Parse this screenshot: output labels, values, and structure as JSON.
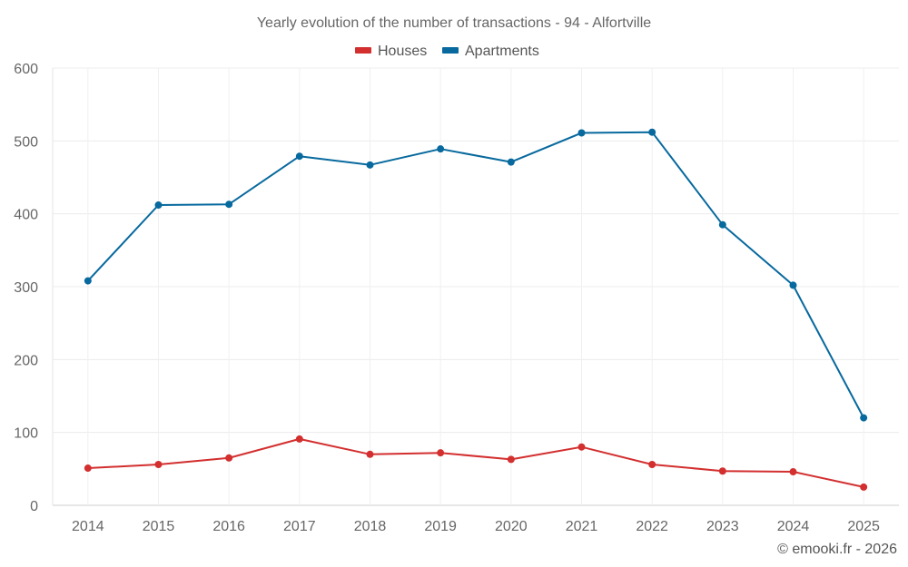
{
  "chart_data": {
    "type": "line",
    "title": "Yearly evolution of the number of transactions - 94 - Alfortville",
    "xlabel": "",
    "ylabel": "",
    "categories": [
      "2014",
      "2015",
      "2016",
      "2017",
      "2018",
      "2019",
      "2020",
      "2021",
      "2022",
      "2023",
      "2024",
      "2025"
    ],
    "ylim": [
      0,
      600
    ],
    "yticks": [
      0,
      100,
      200,
      300,
      400,
      500,
      600
    ],
    "grid": true,
    "legend_position": "top-center",
    "series": [
      {
        "name": "Houses",
        "color": "#d32f2f",
        "values": [
          51,
          56,
          65,
          91,
          70,
          72,
          63,
          80,
          56,
          47,
          46,
          25
        ]
      },
      {
        "name": "Apartments",
        "color": "#07699e",
        "values": [
          308,
          412,
          413,
          479,
          467,
          489,
          471,
          511,
          512,
          385,
          302,
          120
        ]
      }
    ],
    "copyright": "© emooki.fr - 2026"
  }
}
